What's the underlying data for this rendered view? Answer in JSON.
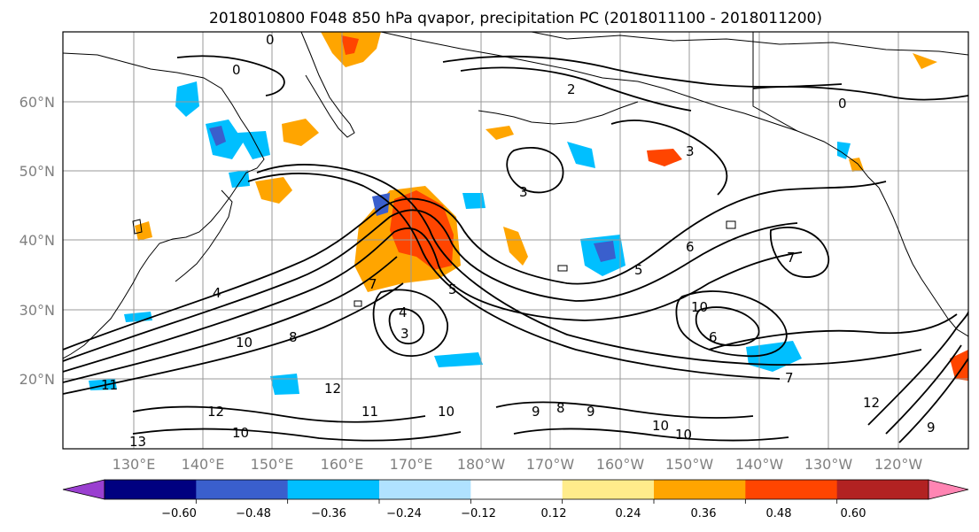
{
  "title": "2018010800 F048 850 hPa qvapor, precipitation PC (2018011100 - 2018011200)",
  "lat_labels": [
    "60°N",
    "50°N",
    "40°N",
    "30°N",
    "20°N"
  ],
  "lon_labels": [
    "130°E",
    "140°E",
    "150°E",
    "160°E",
    "170°E",
    "180°W",
    "170°W",
    "160°W",
    "150°W",
    "140°W",
    "130°W",
    "120°W"
  ],
  "colorbar": {
    "colors": [
      "#9a3fd0",
      "#000080",
      "#3a5fcd",
      "#00bfff",
      "#b0e2ff",
      "#ffffff",
      "#ffec8b",
      "#ffa500",
      "#ff4500",
      "#b22222",
      "#ff85b3"
    ],
    "tick_labels": [
      "−0.60",
      "−0.48",
      "−0.36",
      "−0.24",
      "−0.12",
      "0.12",
      "0.24",
      "0.36",
      "0.48",
      "0.60"
    ]
  },
  "contour_labels": [
    "0",
    "0",
    "2",
    "3",
    "3",
    "0",
    "4",
    "4",
    "7",
    "3",
    "6",
    "5",
    "5",
    "6",
    "7",
    "10",
    "10",
    "8",
    "11",
    "12",
    "11",
    "10",
    "13",
    "10",
    "12",
    "9",
    "8",
    "9",
    "10",
    "10",
    "12",
    "9",
    "7"
  ]
}
